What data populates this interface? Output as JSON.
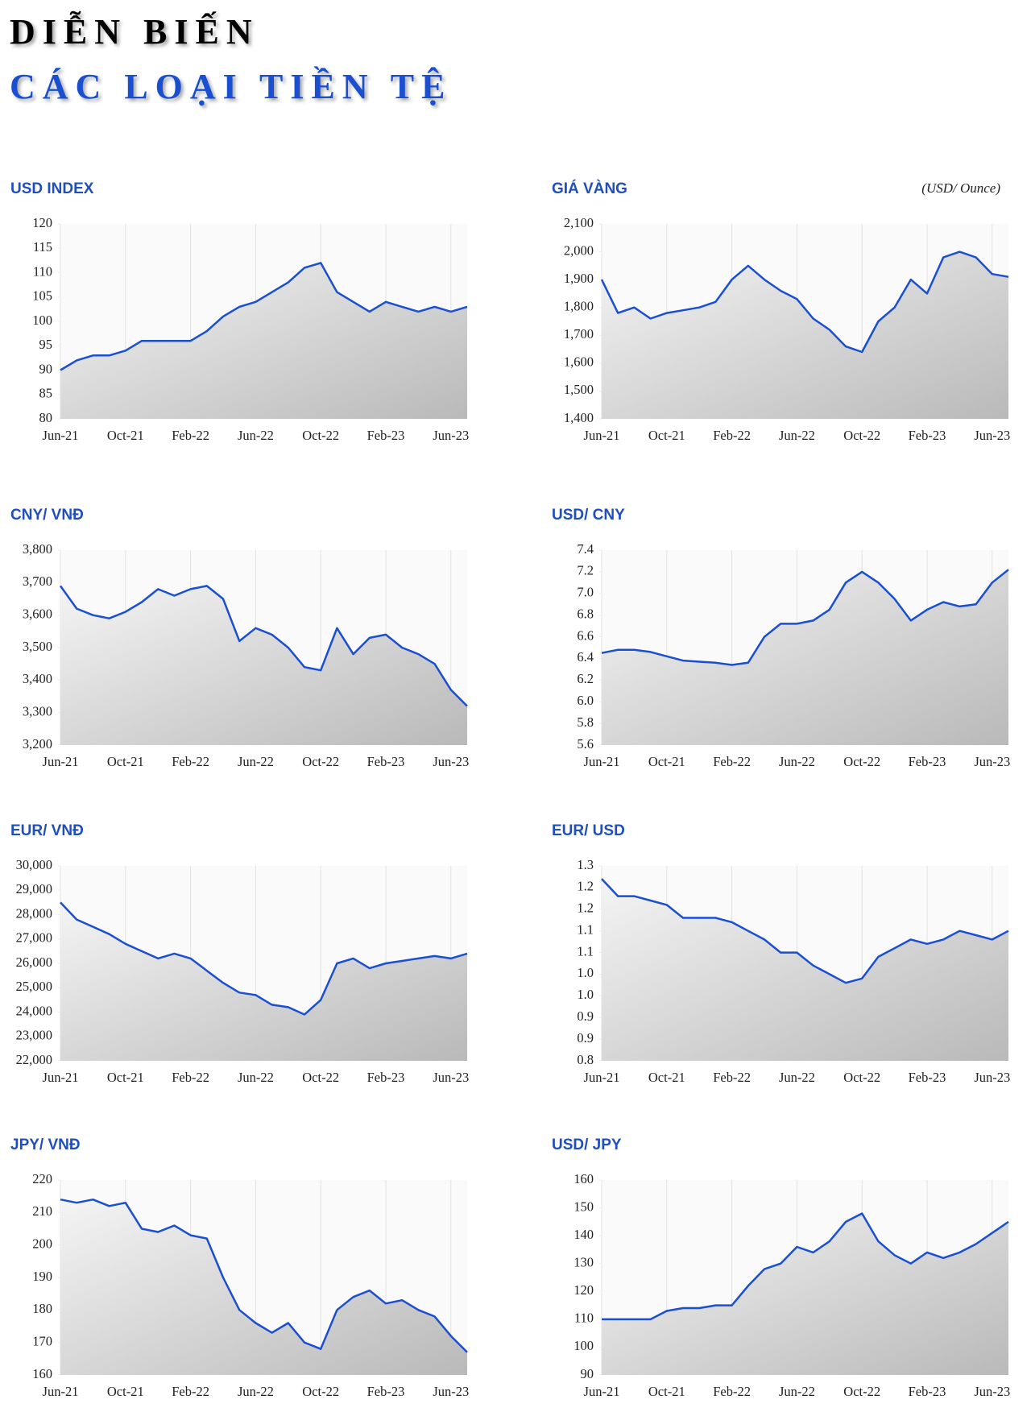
{
  "header": {
    "title": "DIỄN BIẾN",
    "subtitle": "CÁC LOẠI TIỀN TỆ"
  },
  "chart_data": [
    {
      "type": "line",
      "title": "USD INDEX",
      "color": "#1a4fd0",
      "categories": [
        "Jun-21",
        null,
        null,
        null,
        "Oct-21",
        null,
        null,
        null,
        "Feb-22",
        null,
        null,
        null,
        "Jun-22",
        null,
        null,
        null,
        "Oct-22",
        null,
        null,
        null,
        "Feb-23",
        null,
        null,
        null,
        "Jun-23",
        null
      ],
      "values": [
        90,
        92,
        93,
        93,
        94,
        96,
        96,
        96,
        96,
        98,
        101,
        103,
        104,
        106,
        108,
        111,
        112,
        106,
        104,
        102,
        104,
        103,
        102,
        103,
        102,
        103
      ],
      "ylim": [
        80,
        120
      ],
      "yticks": [
        80,
        85,
        90,
        95,
        100,
        105,
        110,
        115,
        120
      ]
    },
    {
      "type": "line",
      "title": "GIÁ VÀNG",
      "unit": "(USD/ Ounce)",
      "color": "#1a4fd0",
      "categories": [
        "Jun-21",
        null,
        null,
        null,
        "Oct-21",
        null,
        null,
        null,
        "Feb-22",
        null,
        null,
        null,
        "Jun-22",
        null,
        null,
        null,
        "Oct-22",
        null,
        null,
        null,
        "Feb-23",
        null,
        null,
        null,
        "Jun-23",
        null
      ],
      "values": [
        1900,
        1780,
        1800,
        1760,
        1780,
        1790,
        1800,
        1820,
        1900,
        1950,
        1900,
        1860,
        1830,
        1760,
        1720,
        1660,
        1640,
        1750,
        1800,
        1900,
        1850,
        1980,
        2000,
        1980,
        1920,
        1910
      ],
      "ylim": [
        1400,
        2100
      ],
      "yticks": [
        {
          "value": 1400,
          "label": "1,400"
        },
        {
          "value": 1500,
          "label": "1,500"
        },
        {
          "value": 1600,
          "label": "1,600"
        },
        {
          "value": 1700,
          "label": "1,700"
        },
        {
          "value": 1800,
          "label": "1,800"
        },
        {
          "value": 1900,
          "label": "1,900"
        },
        {
          "value": 2000,
          "label": "2,000"
        },
        {
          "value": 2100,
          "label": "2,100"
        }
      ]
    },
    {
      "type": "line",
      "title": "CNY/ VNĐ",
      "color": "#1a4fd0",
      "categories": [
        "Jun-21",
        null,
        null,
        null,
        "Oct-21",
        null,
        null,
        null,
        "Feb-22",
        null,
        null,
        null,
        "Jun-22",
        null,
        null,
        null,
        "Oct-22",
        null,
        null,
        null,
        "Feb-23",
        null,
        null,
        null,
        "Jun-23",
        null
      ],
      "values": [
        3690,
        3620,
        3600,
        3590,
        3610,
        3640,
        3680,
        3660,
        3680,
        3690,
        3650,
        3520,
        3560,
        3540,
        3500,
        3440,
        3430,
        3560,
        3480,
        3530,
        3540,
        3500,
        3480,
        3450,
        3370,
        3320
      ],
      "ylim": [
        3200,
        3800
      ],
      "yticks": [
        {
          "value": 3200,
          "label": "3,200"
        },
        {
          "value": 3300,
          "label": "3,300"
        },
        {
          "value": 3400,
          "label": "3,400"
        },
        {
          "value": 3500,
          "label": "3,500"
        },
        {
          "value": 3600,
          "label": "3,600"
        },
        {
          "value": 3700,
          "label": "3,700"
        },
        {
          "value": 3800,
          "label": "3,800"
        }
      ]
    },
    {
      "type": "line",
      "title": "USD/ CNY",
      "color": "#1a4fd0",
      "categories": [
        "Jun-21",
        null,
        null,
        null,
        "Oct-21",
        null,
        null,
        null,
        "Feb-22",
        null,
        null,
        null,
        "Jun-22",
        null,
        null,
        null,
        "Oct-22",
        null,
        null,
        null,
        "Feb-23",
        null,
        null,
        null,
        "Jun-23",
        null
      ],
      "values": [
        6.45,
        6.48,
        6.48,
        6.46,
        6.42,
        6.38,
        6.37,
        6.36,
        6.34,
        6.36,
        6.6,
        6.72,
        6.72,
        6.75,
        6.85,
        7.1,
        7.2,
        7.1,
        6.95,
        6.75,
        6.85,
        6.92,
        6.88,
        6.9,
        7.1,
        7.22
      ],
      "ylim": [
        5.6,
        7.4
      ],
      "yticks": [
        5.6,
        5.8,
        {
          "value": 6,
          "label": "6.0"
        },
        6.2,
        6.4,
        6.6,
        6.8,
        {
          "value": 7,
          "label": "7.0"
        },
        7.2,
        7.4
      ]
    },
    {
      "type": "line",
      "title": "EUR/ VNĐ",
      "color": "#1a4fd0",
      "categories": [
        "Jun-21",
        null,
        null,
        null,
        "Oct-21",
        null,
        null,
        null,
        "Feb-22",
        null,
        null,
        null,
        "Jun-22",
        null,
        null,
        null,
        "Oct-22",
        null,
        null,
        null,
        "Feb-23",
        null,
        null,
        null,
        "Jun-23",
        null
      ],
      "values": [
        28500,
        27800,
        27500,
        27200,
        26800,
        26500,
        26200,
        26400,
        26200,
        25700,
        25200,
        24800,
        24700,
        24300,
        24200,
        23900,
        24500,
        26000,
        26200,
        25800,
        26000,
        26100,
        26200,
        26300,
        26200,
        26400
      ],
      "ylim": [
        22000,
        30000
      ],
      "yticks": [
        {
          "value": 22000,
          "label": "22,000"
        },
        {
          "value": 23000,
          "label": "23,000"
        },
        {
          "value": 24000,
          "label": "24,000"
        },
        {
          "value": 25000,
          "label": "25,000"
        },
        {
          "value": 26000,
          "label": "26,000"
        },
        {
          "value": 27000,
          "label": "27,000"
        },
        {
          "value": 28000,
          "label": "28,000"
        },
        {
          "value": 29000,
          "label": "29,000"
        },
        {
          "value": 30000,
          "label": "30,000"
        }
      ]
    },
    {
      "type": "line",
      "title": "EUR/ USD",
      "color": "#1a4fd0",
      "categories": [
        "Jun-21",
        null,
        null,
        null,
        "Oct-21",
        null,
        null,
        null,
        "Feb-22",
        null,
        null,
        null,
        "Jun-22",
        null,
        null,
        null,
        "Oct-22",
        null,
        null,
        null,
        "Feb-23",
        null,
        null,
        null,
        "Jun-23",
        null
      ],
      "values": [
        1.22,
        1.18,
        1.18,
        1.17,
        1.16,
        1.13,
        1.13,
        1.13,
        1.12,
        1.1,
        1.08,
        1.05,
        1.05,
        1.02,
        1,
        0.98,
        0.99,
        1.04,
        1.06,
        1.08,
        1.07,
        1.08,
        1.1,
        1.09,
        1.08,
        1.1
      ],
      "ylim": [
        0.8,
        1.25
      ],
      "yticks": [
        0.8,
        {
          "value": 0.85,
          "label": "0.9"
        },
        0.9,
        {
          "value": 0.95,
          "label": "1.0"
        },
        {
          "value": 1,
          "label": "1.0"
        },
        {
          "value": 1.05,
          "label": "1.1"
        },
        1.1,
        {
          "value": 1.15,
          "label": "1.2"
        },
        1.2,
        {
          "value": 1.25,
          "label": "1.3"
        }
      ]
    },
    {
      "type": "line",
      "title": "JPY/ VNĐ",
      "color": "#1a4fd0",
      "categories": [
        "Jun-21",
        null,
        null,
        null,
        "Oct-21",
        null,
        null,
        null,
        "Feb-22",
        null,
        null,
        null,
        "Jun-22",
        null,
        null,
        null,
        "Oct-22",
        null,
        null,
        null,
        "Feb-23",
        null,
        null,
        null,
        "Jun-23",
        null
      ],
      "values": [
        214,
        213,
        214,
        212,
        213,
        205,
        204,
        206,
        203,
        202,
        190,
        180,
        176,
        173,
        176,
        170,
        168,
        180,
        184,
        186,
        182,
        183,
        180,
        178,
        172,
        167
      ],
      "ylim": [
        160,
        220
      ],
      "yticks": [
        160,
        170,
        180,
        190,
        200,
        210,
        220
      ]
    },
    {
      "type": "line",
      "title": "USD/ JPY",
      "color": "#1a4fd0",
      "categories": [
        "Jun-21",
        null,
        null,
        null,
        "Oct-21",
        null,
        null,
        null,
        "Feb-22",
        null,
        null,
        null,
        "Jun-22",
        null,
        null,
        null,
        "Oct-22",
        null,
        null,
        null,
        "Feb-23",
        null,
        null,
        null,
        "Jun-23",
        null
      ],
      "values": [
        110,
        110,
        110,
        110,
        113,
        114,
        114,
        115,
        115,
        122,
        128,
        130,
        136,
        134,
        138,
        145,
        148,
        138,
        133,
        130,
        134,
        132,
        134,
        137,
        141,
        145
      ],
      "ylim": [
        90,
        160
      ],
      "yticks": [
        90,
        100,
        110,
        120,
        130,
        140,
        150,
        160
      ]
    }
  ]
}
